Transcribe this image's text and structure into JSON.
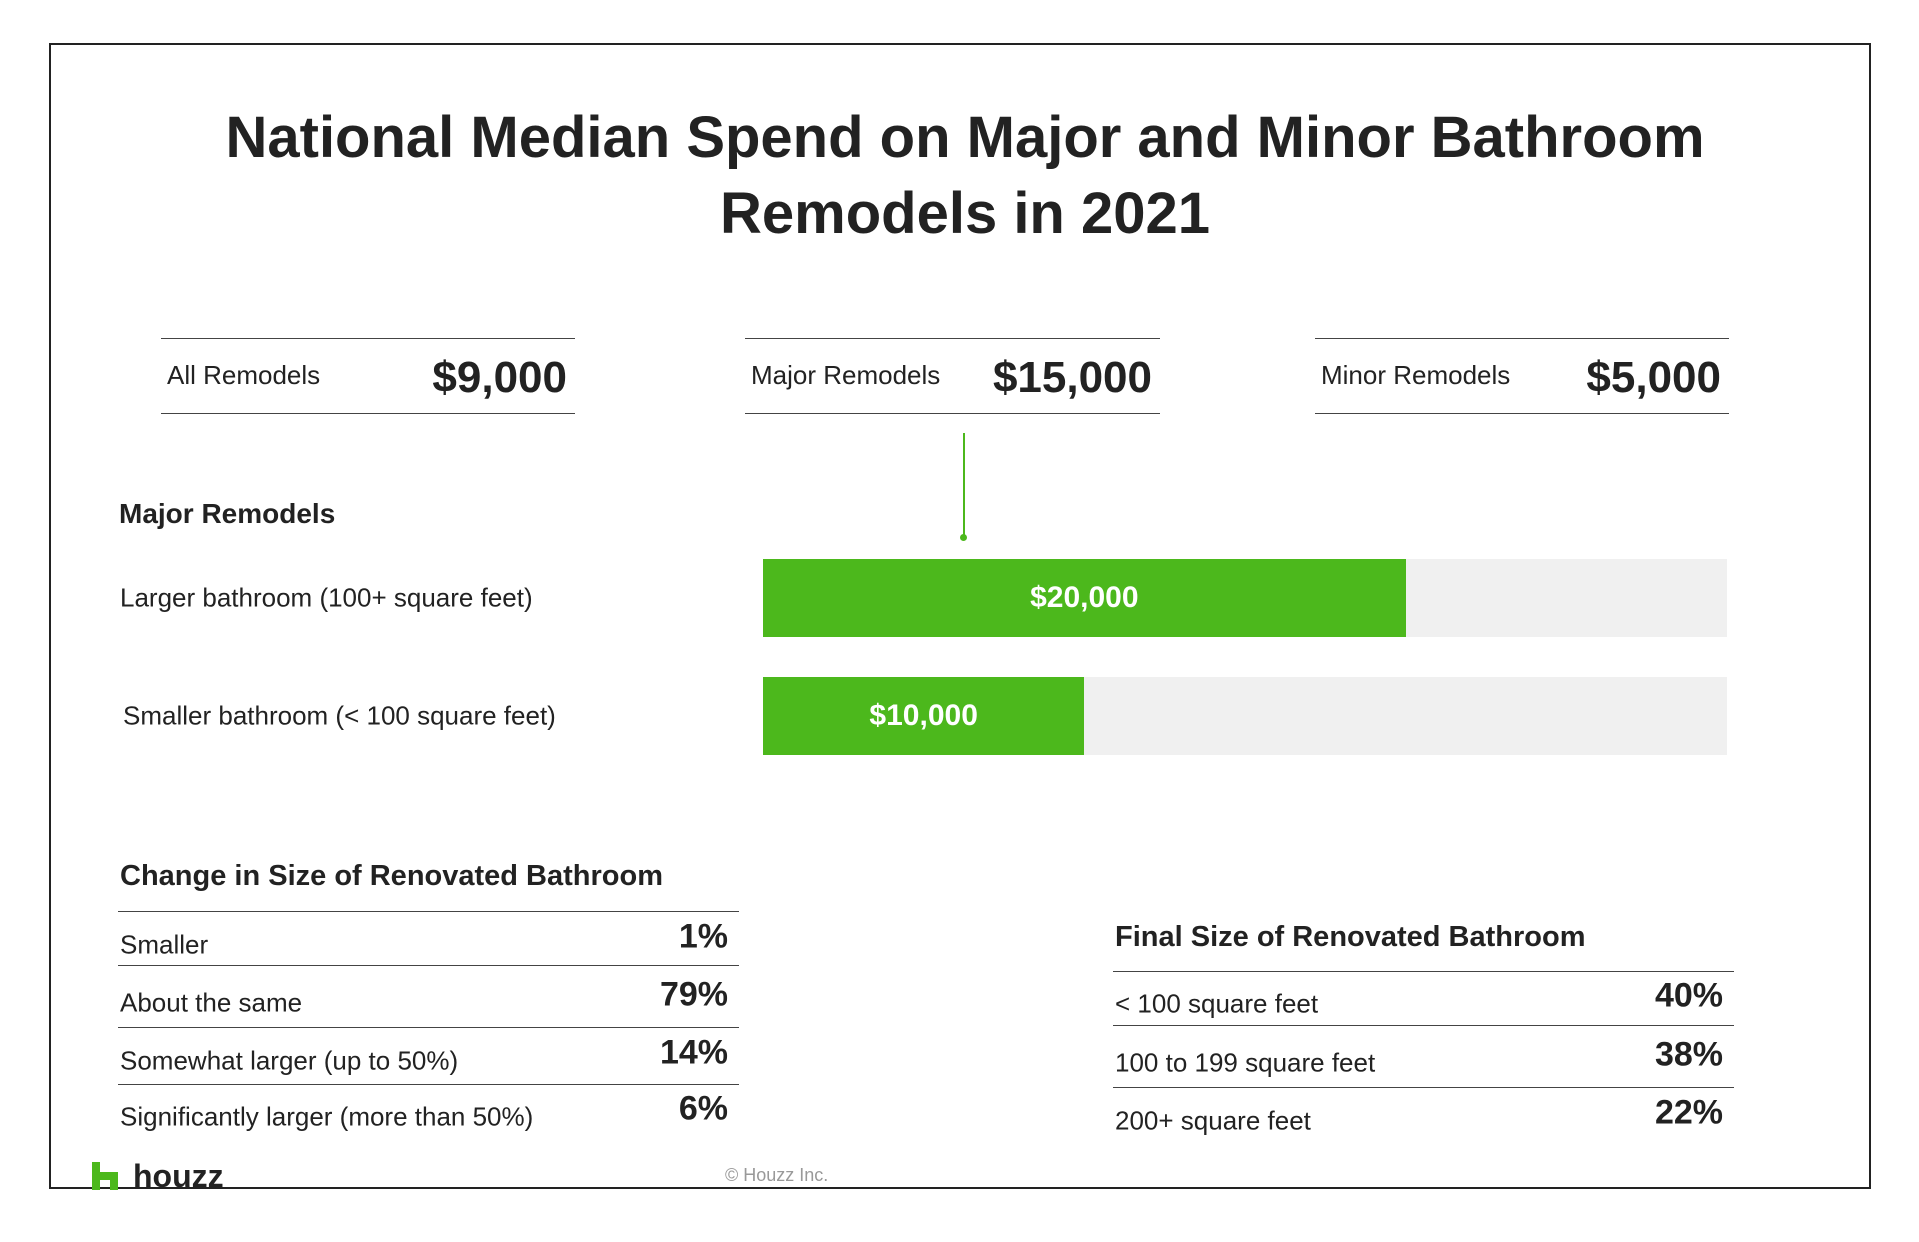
{
  "title": "National Median Spend on Major and Minor Bathroom Remodels in 2021",
  "summary": [
    {
      "label": "All Remodels",
      "value": "$9,000"
    },
    {
      "label": "Major Remodels",
      "value": "$15,000"
    },
    {
      "label": "Minor Remodels",
      "value": "$5,000"
    }
  ],
  "chart_data": {
    "type": "bar",
    "orientation": "horizontal",
    "title": "Major Remodels",
    "categories": [
      "Larger bathroom  (100+ square feet)",
      "Smaller bathroom  (< 100 square feet)"
    ],
    "values": [
      20000,
      10000
    ],
    "value_labels": [
      "$20,000",
      "$10,000"
    ],
    "xlim": [
      0,
      30000
    ],
    "color": "#4cb81c",
    "track_color": "#f0f0f0"
  },
  "change_table": {
    "title": "Change in Size of Renovated Bathroom",
    "rows": [
      [
        "Smaller",
        "1%"
      ],
      [
        "About the same",
        "79%"
      ],
      [
        "Somewhat larger (up to 50%)",
        "14%"
      ],
      [
        "Significantly larger (more than 50%)",
        "6%"
      ]
    ]
  },
  "final_table": {
    "title": "Final Size of Renovated Bathroom",
    "rows": [
      [
        "< 100 square feet",
        "40%"
      ],
      [
        "100 to 199 square feet",
        "38%"
      ],
      [
        "200+ square feet",
        "22%"
      ]
    ]
  },
  "footer": {
    "brand": "houzz",
    "copyright": "© Houzz Inc."
  }
}
